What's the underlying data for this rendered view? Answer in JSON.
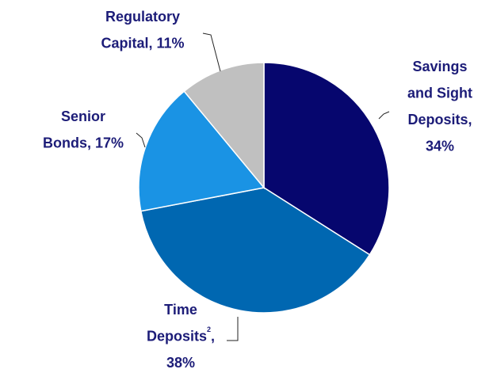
{
  "chart_data": {
    "type": "pie",
    "categories": [
      "Savings and Sight Deposits",
      "Time Deposits",
      "Senior Bonds",
      "Regulatory Capital"
    ],
    "values": [
      34,
      38,
      17,
      11
    ],
    "value_labels": [
      "34%",
      "38%",
      "17%",
      "11%"
    ],
    "separator": ",",
    "footnote": {
      "slice": 1,
      "mark": "2"
    },
    "colors": [
      "#06066e",
      "#0067b1",
      "#1a93e4",
      "#c0c0c0"
    ]
  }
}
